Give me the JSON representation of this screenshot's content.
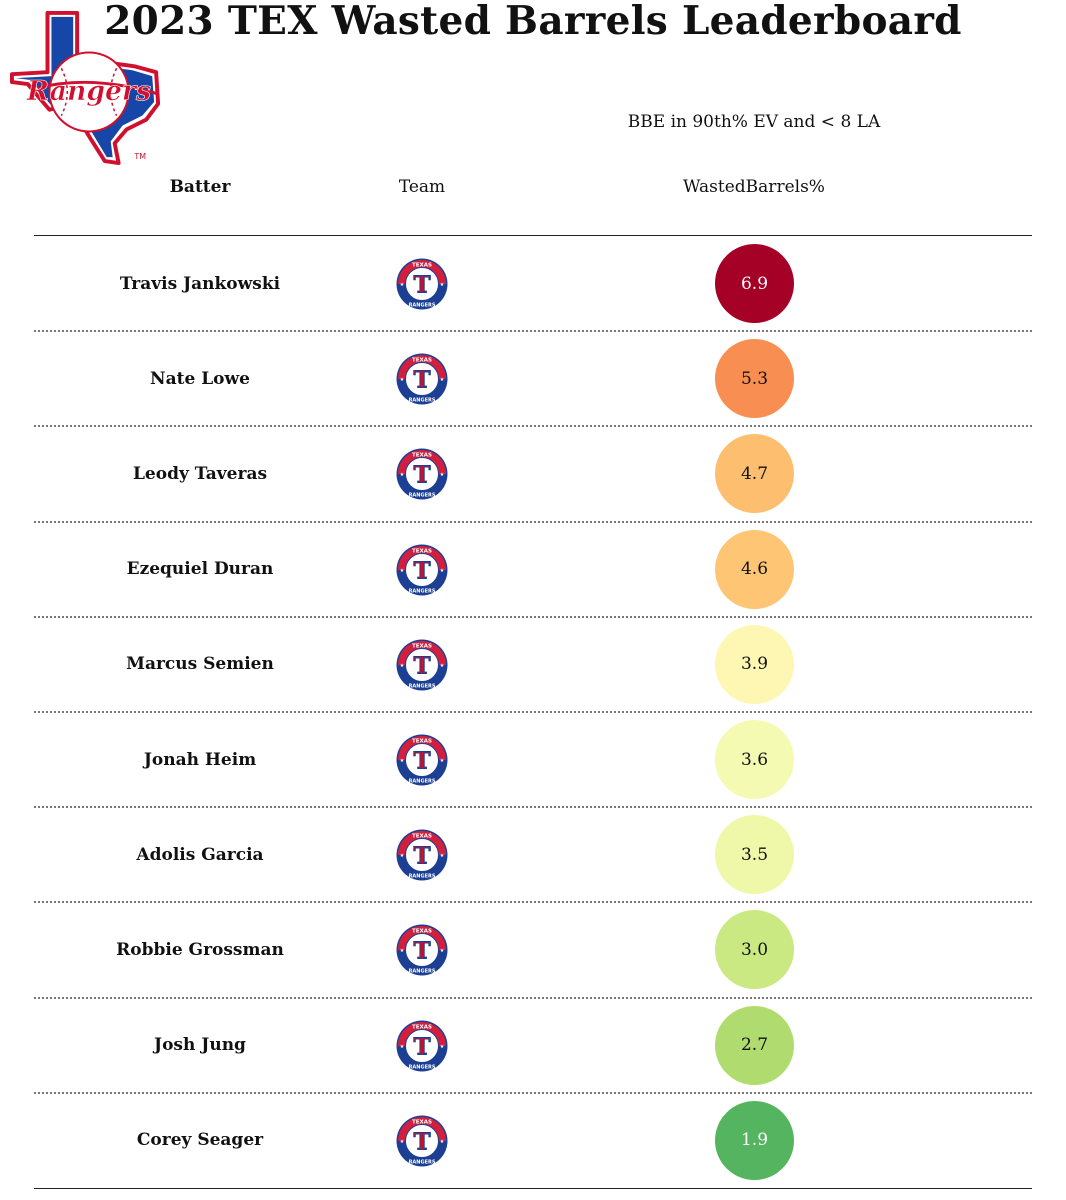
{
  "title": "2023 TEX Wasted Barrels Leaderboard",
  "subtitle": "BBE in 90th% EV and < 8 LA",
  "columns": {
    "batter": "Batter",
    "team": "Team",
    "value": "WastedBarrels%"
  },
  "logo": {
    "text": "Rangers",
    "trademark": "TM"
  },
  "team_logo": {
    "letter": "T",
    "top_text": "TEXAS",
    "bottom_text": "RANGERS"
  },
  "chart_data": {
    "type": "table",
    "title": "2023 TEX Wasted Barrels Leaderboard",
    "subtitle": "BBE in 90th% EV and < 8 LA",
    "columns": [
      "Batter",
      "Team",
      "WastedBarrels%"
    ],
    "rows": [
      {
        "batter": "Travis Jankowski",
        "team": "TEX",
        "value": "6.9",
        "color": "#a50026",
        "text_color": "#ffffff"
      },
      {
        "batter": "Nate Lowe",
        "team": "TEX",
        "value": "5.3",
        "color": "#f98e52",
        "text_color": "#111111"
      },
      {
        "batter": "Leody Taveras",
        "team": "TEX",
        "value": "4.7",
        "color": "#fdbf6f",
        "text_color": "#111111"
      },
      {
        "batter": "Ezequiel Duran",
        "team": "TEX",
        "value": "4.6",
        "color": "#fec574",
        "text_color": "#111111"
      },
      {
        "batter": "Marcus Semien",
        "team": "TEX",
        "value": "3.9",
        "color": "#fdf7b3",
        "text_color": "#111111"
      },
      {
        "batter": "Jonah Heim",
        "team": "TEX",
        "value": "3.6",
        "color": "#f4fab1",
        "text_color": "#111111"
      },
      {
        "batter": "Adolis Garcia",
        "team": "TEX",
        "value": "3.5",
        "color": "#eef8a8",
        "text_color": "#111111"
      },
      {
        "batter": "Robbie Grossman",
        "team": "TEX",
        "value": "3.0",
        "color": "#cae982",
        "text_color": "#111111"
      },
      {
        "batter": "Josh Jung",
        "team": "TEX",
        "value": "2.7",
        "color": "#b0dc6f",
        "text_color": "#111111"
      },
      {
        "batter": "Corey Seager",
        "team": "TEX",
        "value": "1.9",
        "color": "#54b45f",
        "text_color": "#ffffff"
      }
    ]
  }
}
